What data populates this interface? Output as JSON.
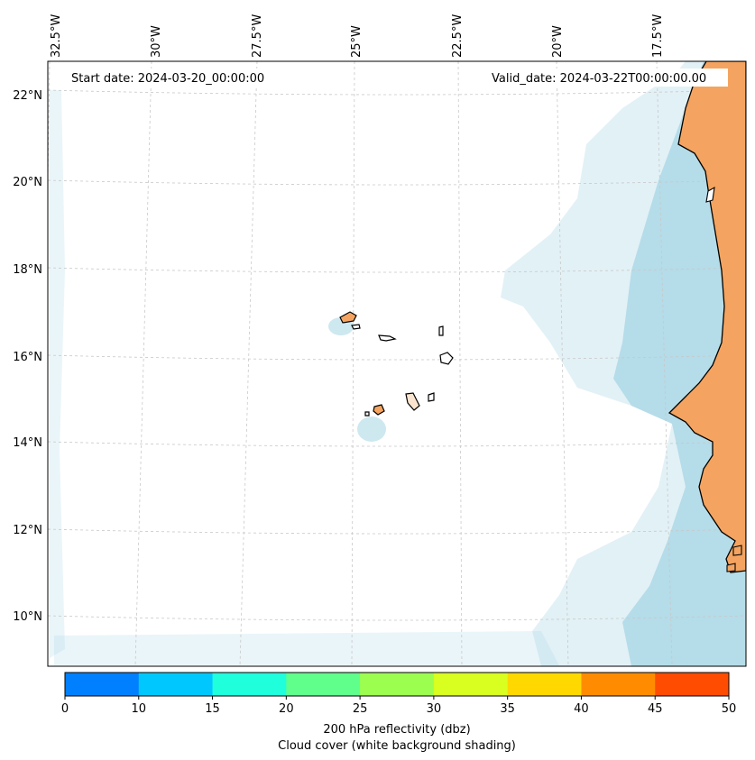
{
  "map": {
    "start_date": "Start date: 2024-03-20_00:00:00",
    "valid_date": "Valid_date: 2024-03-22T00:00:00.00"
  },
  "lon_labels": [
    "32.5°W",
    "30°W",
    "27.5°W",
    "25°W",
    "22.5°W",
    "20°W",
    "17.5°W"
  ],
  "lat_labels": [
    "22°N",
    "20°N",
    "18°N",
    "16°N",
    "14°N",
    "12°N",
    "10°N"
  ],
  "colorbar": {
    "ticks": [
      "0",
      "10",
      "15",
      "20",
      "25",
      "30",
      "35",
      "40",
      "45",
      "50"
    ],
    "colors": [
      "#0080ff",
      "#00c8ff",
      "#20ffdc",
      "#60ff8c",
      "#9cff50",
      "#d8ff20",
      "#ffd800",
      "#ff8c00",
      "#ff4c00"
    ],
    "label_line1": "200 hPa reflectivity (dbz)",
    "label_line2": "Cloud cover (white background shading)"
  },
  "colors": {
    "land": "#f4a460",
    "cloud": "#add8e6",
    "coast": "#000000"
  }
}
